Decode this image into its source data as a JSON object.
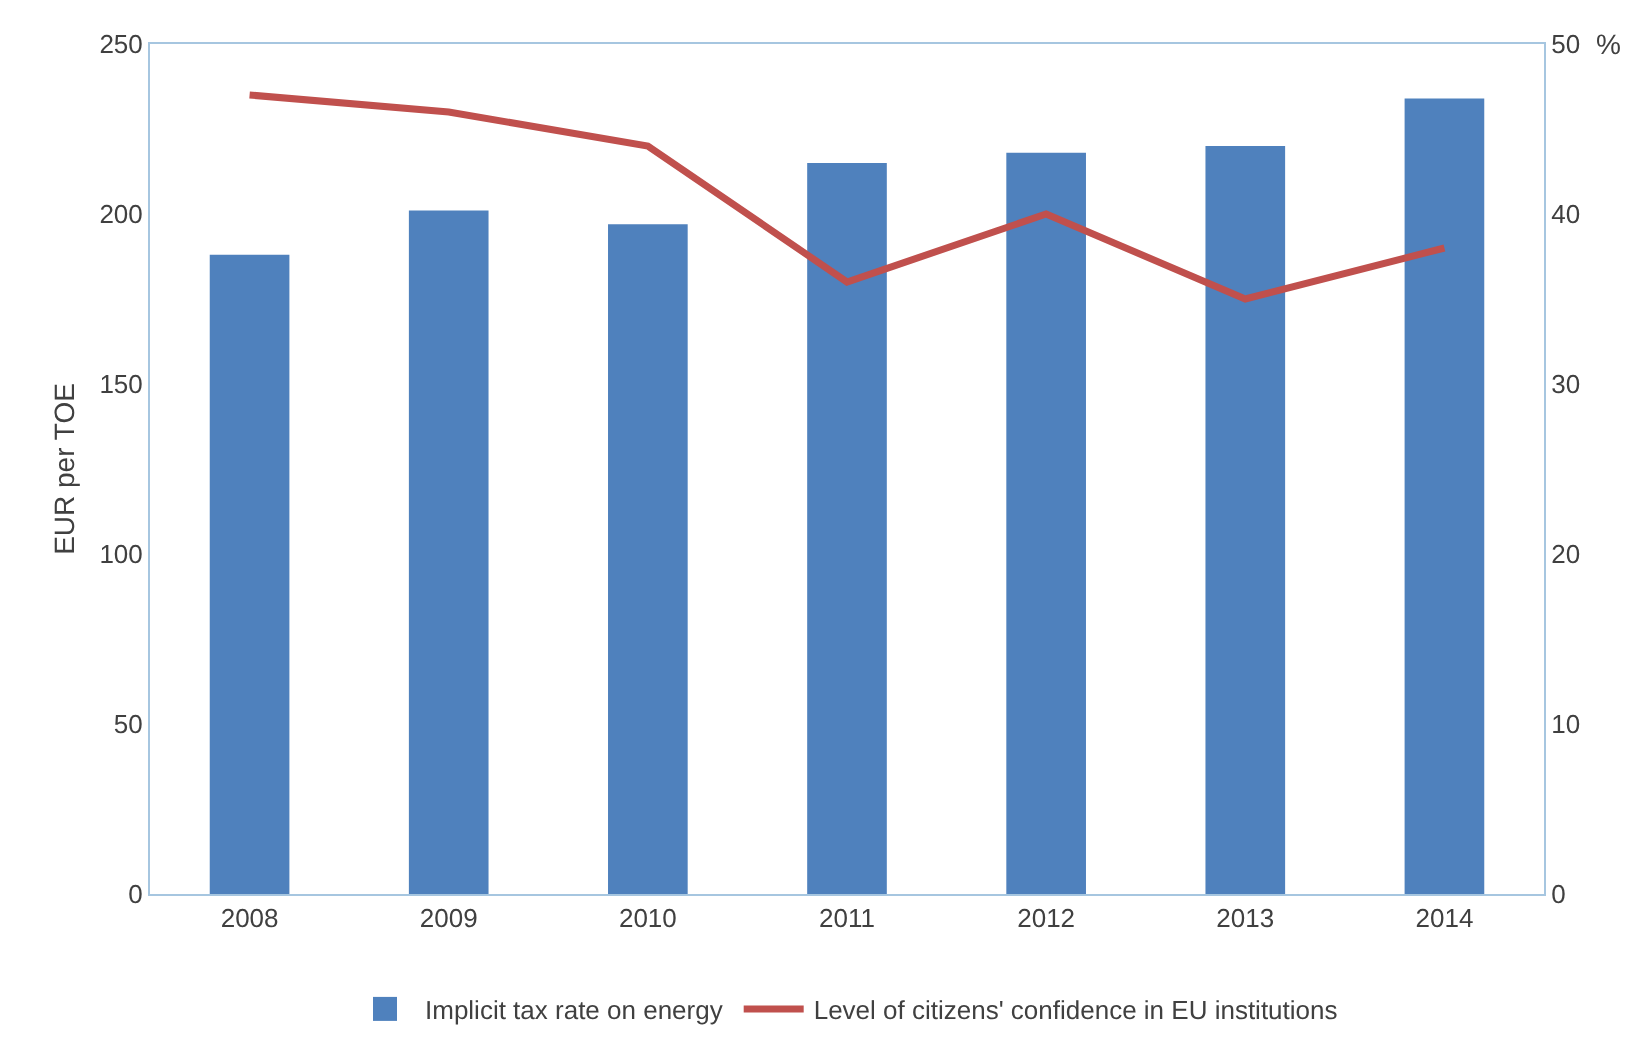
{
  "chart_data": {
    "type": "bar",
    "ylabel": "EUR per TOE",
    "y2label": "%",
    "categories": [
      "2008",
      "2009",
      "2010",
      "2011",
      "2012",
      "2013",
      "2014"
    ],
    "series": [
      {
        "name": "Implicit tax rate on energy",
        "color": "#4f81bd",
        "values": [
          188,
          201,
          197,
          215,
          218,
          220,
          234
        ]
      },
      {
        "name": "Level of citizens' confidence in EU institutions",
        "type": "line",
        "axis": "y2",
        "color": "#c0504d",
        "values": [
          47,
          46,
          44,
          36,
          40,
          35,
          38
        ]
      }
    ],
    "ylim": [
      0,
      250
    ],
    "yticks": [
      0,
      50,
      100,
      150,
      200,
      250
    ],
    "y2lim": [
      0,
      50
    ],
    "y2ticks": [
      0,
      10,
      20,
      30,
      40,
      50
    ],
    "grid": false,
    "legend": "bottom",
    "marker": "none",
    "line_style": "solid"
  }
}
